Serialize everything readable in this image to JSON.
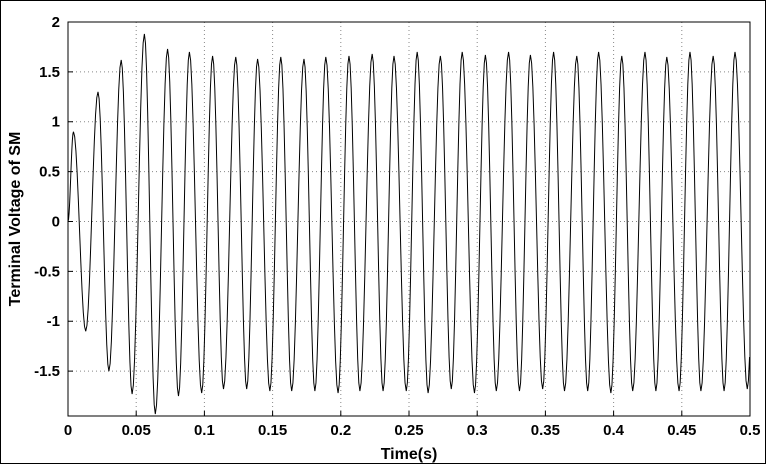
{
  "chart_data": {
    "type": "line",
    "title": "",
    "xlabel": "Time(s)",
    "ylabel": "Terminal Voltage of SM",
    "xlim": [
      0,
      0.5
    ],
    "ylim": [
      -1.95,
      2.0
    ],
    "grid": true,
    "x_ticks": [
      "0",
      "0.05",
      "0.1",
      "0.15",
      "0.2",
      "0.25",
      "0.3",
      "0.35",
      "0.4",
      "0.45",
      "0.5"
    ],
    "y_ticks": [
      "2",
      "1.5",
      "1",
      "0.5",
      "0",
      "-0.5",
      "-1",
      "-1.5"
    ],
    "series": [
      {
        "frequency_hz": 60,
        "peaks": [
          [
            0.004,
            0.9
          ],
          [
            0.013,
            -1.1
          ],
          [
            0.022,
            1.3
          ],
          [
            0.03,
            -1.5
          ],
          [
            0.039,
            1.62
          ],
          [
            0.047,
            -1.73
          ],
          [
            0.056,
            1.88
          ],
          [
            0.064,
            -1.93
          ],
          [
            0.073,
            1.73
          ],
          [
            0.081,
            -1.75
          ],
          [
            0.089,
            1.7
          ],
          [
            0.098,
            -1.72
          ],
          [
            0.106,
            1.66
          ],
          [
            0.114,
            -1.68
          ],
          [
            0.123,
            1.65
          ],
          [
            0.131,
            -1.68
          ],
          [
            0.139,
            1.63
          ],
          [
            0.148,
            -1.7
          ],
          [
            0.156,
            1.65
          ],
          [
            0.164,
            -1.7
          ],
          [
            0.173,
            1.63
          ],
          [
            0.181,
            -1.7
          ],
          [
            0.189,
            1.65
          ],
          [
            0.198,
            -1.72
          ],
          [
            0.206,
            1.66
          ],
          [
            0.214,
            -1.7
          ],
          [
            0.223,
            1.68
          ],
          [
            0.231,
            -1.7
          ],
          [
            0.239,
            1.66
          ],
          [
            0.248,
            -1.7
          ],
          [
            0.256,
            1.7
          ],
          [
            0.264,
            -1.72
          ],
          [
            0.273,
            1.66
          ],
          [
            0.281,
            -1.68
          ],
          [
            0.289,
            1.7
          ],
          [
            0.298,
            -1.72
          ],
          [
            0.306,
            1.67
          ],
          [
            0.314,
            -1.7
          ],
          [
            0.323,
            1.7
          ],
          [
            0.331,
            -1.7
          ],
          [
            0.339,
            1.67
          ],
          [
            0.348,
            -1.68
          ],
          [
            0.356,
            1.7
          ],
          [
            0.364,
            -1.7
          ],
          [
            0.373,
            1.66
          ],
          [
            0.381,
            -1.7
          ],
          [
            0.389,
            1.7
          ],
          [
            0.398,
            -1.72
          ],
          [
            0.406,
            1.66
          ],
          [
            0.414,
            -1.7
          ],
          [
            0.423,
            1.7
          ],
          [
            0.431,
            -1.7
          ],
          [
            0.439,
            1.65
          ],
          [
            0.448,
            -1.7
          ],
          [
            0.456,
            1.7
          ],
          [
            0.464,
            -1.7
          ],
          [
            0.473,
            1.66
          ],
          [
            0.481,
            -1.7
          ],
          [
            0.489,
            1.7
          ],
          [
            0.498,
            -1.68
          ]
        ]
      }
    ]
  }
}
